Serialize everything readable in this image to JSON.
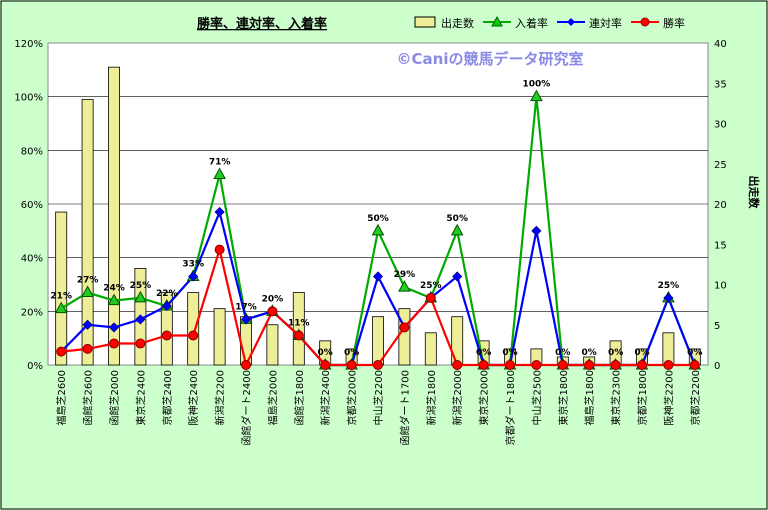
{
  "chart_data": {
    "type": "bar",
    "title": "勝率、連対率、入着率",
    "watermark": "©Caniの競馬データ研究室",
    "ylabel": "",
    "y2label": "出走数",
    "ylim": [
      0,
      120
    ],
    "y2lim": [
      0,
      40
    ],
    "yticks": [
      "0%",
      "20%",
      "40%",
      "60%",
      "80%",
      "100%",
      "120%"
    ],
    "y2ticks": [
      "0",
      "5",
      "10",
      "15",
      "20",
      "25",
      "30",
      "35",
      "40"
    ],
    "grid": true,
    "legend_position": "top-right",
    "categories": [
      "福島芝2600",
      "函館芝2600",
      "函館芝2000",
      "東京芝2400",
      "京都芝2400",
      "阪神芝2400",
      "新潟芝2200",
      "函館ダート2400",
      "福島芝2000",
      "函館芝1800",
      "新潟芝2400",
      "京都芝2000",
      "中山芝2200",
      "函館ダート1700",
      "新潟芝1800",
      "新潟芝2000",
      "東京芝2000",
      "京都ダート1800",
      "中山芝2500",
      "東京芝1800",
      "福島芝1800",
      "東京芝2300",
      "京都芝1800",
      "阪神芝2200",
      "京都芝2200"
    ],
    "series": [
      {
        "name": "出走数",
        "type": "bar",
        "axis": "right",
        "color": "#eeee99",
        "values": [
          19,
          33,
          37,
          12,
          9,
          9,
          7,
          6,
          5,
          9,
          3,
          2,
          6,
          7,
          4,
          6,
          3,
          2,
          2,
          1,
          1,
          3,
          2,
          4,
          2
        ]
      },
      {
        "name": "入着率",
        "type": "line",
        "axis": "left",
        "color": "#00aa00",
        "marker": "triangle",
        "values": [
          21,
          27,
          24,
          25,
          22,
          33,
          71,
          17,
          20,
          11,
          0,
          0,
          50,
          29,
          25,
          50,
          0,
          0,
          100,
          0,
          0,
          0,
          0,
          25,
          0
        ]
      },
      {
        "name": "連対率",
        "type": "line",
        "axis": "left",
        "color": "#0000ff",
        "marker": "diamond",
        "values": [
          5,
          15,
          14,
          17,
          22,
          33,
          57,
          17,
          20,
          11,
          0,
          0,
          33,
          14,
          25,
          33,
          0,
          0,
          50,
          0,
          0,
          0,
          0,
          25,
          0
        ]
      },
      {
        "name": "勝率",
        "type": "line",
        "axis": "left",
        "color": "#ff0000",
        "marker": "circle",
        "values": [
          5,
          6,
          8,
          8,
          11,
          11,
          43,
          0,
          20,
          11,
          0,
          0,
          0,
          14,
          25,
          0,
          0,
          0,
          0,
          0,
          0,
          0,
          0,
          0,
          0
        ]
      }
    ],
    "data_labels": [
      "21%",
      "27%",
      "24%",
      "25%",
      "22%",
      "33%",
      "71%",
      "17%",
      "20%",
      "11%",
      "0%",
      "0%",
      "50%",
      "29%",
      "25%",
      "50%",
      "0%",
      "0%",
      "100%",
      "0%",
      "0%",
      "0%",
      "0%",
      "25%",
      "0%"
    ]
  }
}
